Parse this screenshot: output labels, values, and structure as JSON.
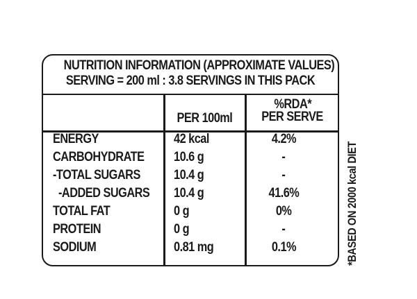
{
  "label": {
    "title_line1": "NUTRITION INFORMATION (APPROXIMATE VALUES)",
    "title_line2": "SERVING = 200 ml : 3.8 SERVINGS IN THIS PACK",
    "col_per100": "PER 100ml",
    "col_rda_line1": "%RDA*",
    "col_rda_line2": "PER SERVE",
    "rows": [
      {
        "name": "ENERGY",
        "per100": "42 kcal",
        "rda": "4.2%"
      },
      {
        "name": "CARBOHYDRATE",
        "per100": "10.6 g",
        "rda": "-"
      },
      {
        "name": "-TOTAL SUGARS",
        "per100": "10.4 g",
        "rda": "-"
      },
      {
        "name": "-ADDED SUGARS",
        "per100": "10.4 g",
        "rda": "41.6%"
      },
      {
        "name": "TOTAL FAT",
        "per100": "0 g",
        "rda": "0%"
      },
      {
        "name": "PROTEIN",
        "per100": "0 g",
        "rda": "-"
      },
      {
        "name": "SODIUM",
        "per100": "0.81 mg",
        "rda": "0.1%"
      }
    ],
    "footnote": "*BASED ON 2000 kcal DIET"
  }
}
